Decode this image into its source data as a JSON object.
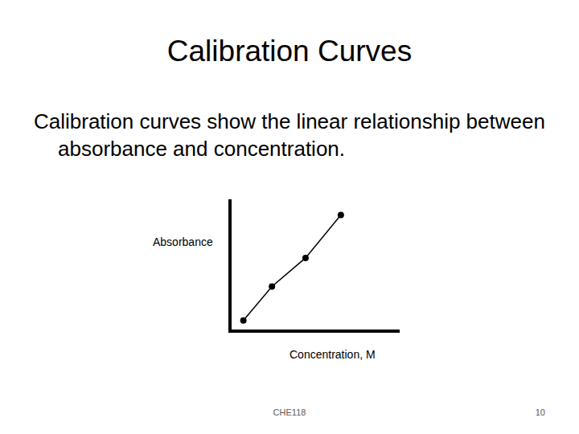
{
  "slide": {
    "title": "Calibration Curves",
    "text": "Calibration curves show the linear relationship between absorbance and concentration.",
    "footer": "CHE118",
    "page_number": "10"
  },
  "chart_data": {
    "type": "scatter",
    "x_label": "Concentration, M",
    "y_label": "Absorbance",
    "x": [
      0.07,
      0.24,
      0.44,
      0.65
    ],
    "values": [
      0.07,
      0.33,
      0.55,
      0.88
    ],
    "color": "#000000",
    "marker": "circle",
    "line_style": "solid",
    "xlim": [
      0,
      1
    ],
    "ylim": [
      0,
      1
    ],
    "tick_labels": false,
    "grid": false
  }
}
